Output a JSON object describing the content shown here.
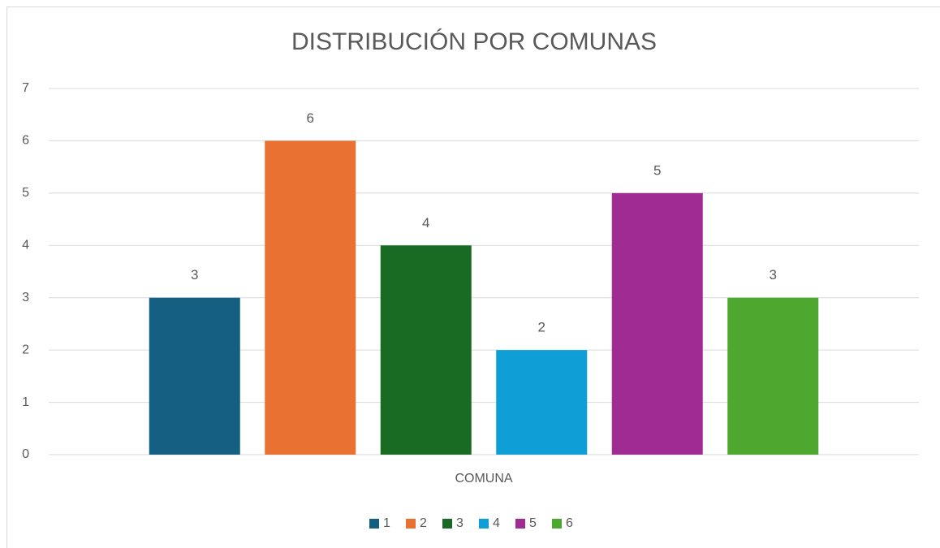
{
  "chart_data": {
    "type": "bar",
    "title": "DISTRIBUCIÓN POR COMUNAS",
    "categories": [
      "COMUNA"
    ],
    "series": [
      {
        "name": "1",
        "color": "#156082",
        "values": [
          3
        ]
      },
      {
        "name": "2",
        "color": "#e97132",
        "values": [
          6
        ]
      },
      {
        "name": "3",
        "color": "#196b24",
        "values": [
          4
        ]
      },
      {
        "name": "4",
        "color": "#0f9ed5",
        "values": [
          2
        ]
      },
      {
        "name": "5",
        "color": "#a02b93",
        "values": [
          5
        ]
      },
      {
        "name": "6",
        "color": "#4ea72e",
        "values": [
          3
        ]
      }
    ],
    "ylim": [
      0,
      7
    ],
    "yticks": [
      0,
      1,
      2,
      3,
      4,
      5,
      6,
      7
    ],
    "grid": true,
    "legend": "bottom"
  }
}
